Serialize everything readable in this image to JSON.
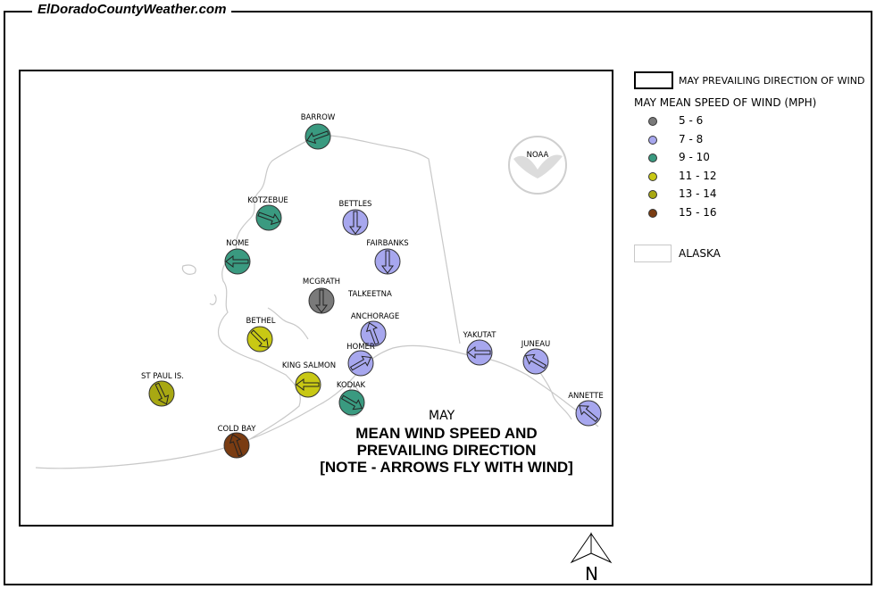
{
  "site_title": "ElDoradoCountyWeather.com",
  "legend": {
    "direction_label": "MAY PREVAILING DIRECTION OF WIND",
    "speed_title": "MAY MEAN SPEED OF WIND (MPH)",
    "classes": [
      {
        "label": "5 - 6",
        "color": "#7a7a7a"
      },
      {
        "label": "7 - 8",
        "color": "#a7a7ee"
      },
      {
        "label": "9 - 10",
        "color": "#3a9a80"
      },
      {
        "label": "11 - 12",
        "color": "#c8c814"
      },
      {
        "label": "13 - 14",
        "color": "#a8a812"
      },
      {
        "label": "15 - 16",
        "color": "#7a3c12"
      }
    ],
    "alaska_label": "ALASKA"
  },
  "map_title": {
    "month": "MAY",
    "line1": "MEAN WIND SPEED AND",
    "line2": "PREVAILING DIRECTION",
    "line3": "[NOTE - ARROWS FLY WITH WIND]"
  },
  "noaa_label": "NOAA",
  "north_label": "N",
  "stations": [
    {
      "name": "BARROW",
      "class": 2,
      "dir": 250
    },
    {
      "name": "KOTZEBUE",
      "class": 2,
      "dir": 110
    },
    {
      "name": "BETTLES",
      "class": 1,
      "dir": 180
    },
    {
      "name": "NOME",
      "class": 2,
      "dir": 270
    },
    {
      "name": "FAIRBANKS",
      "class": 1,
      "dir": 180
    },
    {
      "name": "MCGRATH",
      "class": 0,
      "dir": 180
    },
    {
      "name": "TALKEETNA",
      "class": null,
      "dir": null
    },
    {
      "name": "ANCHORAGE",
      "class": 1,
      "dir": 340
    },
    {
      "name": "BETHEL",
      "class": 3,
      "dir": 135
    },
    {
      "name": "HOMER",
      "class": 1,
      "dir": 60
    },
    {
      "name": "KING SALMON",
      "class": 3,
      "dir": 270
    },
    {
      "name": "ST PAUL IS.",
      "class": 4,
      "dir": 155
    },
    {
      "name": "KODIAK",
      "class": 2,
      "dir": 120
    },
    {
      "name": "COLD BAY",
      "class": 5,
      "dir": 340
    },
    {
      "name": "YAKUTAT",
      "class": 1,
      "dir": 270
    },
    {
      "name": "JUNEAU",
      "class": 1,
      "dir": 300
    },
    {
      "name": "ANNETTE",
      "class": 1,
      "dir": 310
    }
  ]
}
